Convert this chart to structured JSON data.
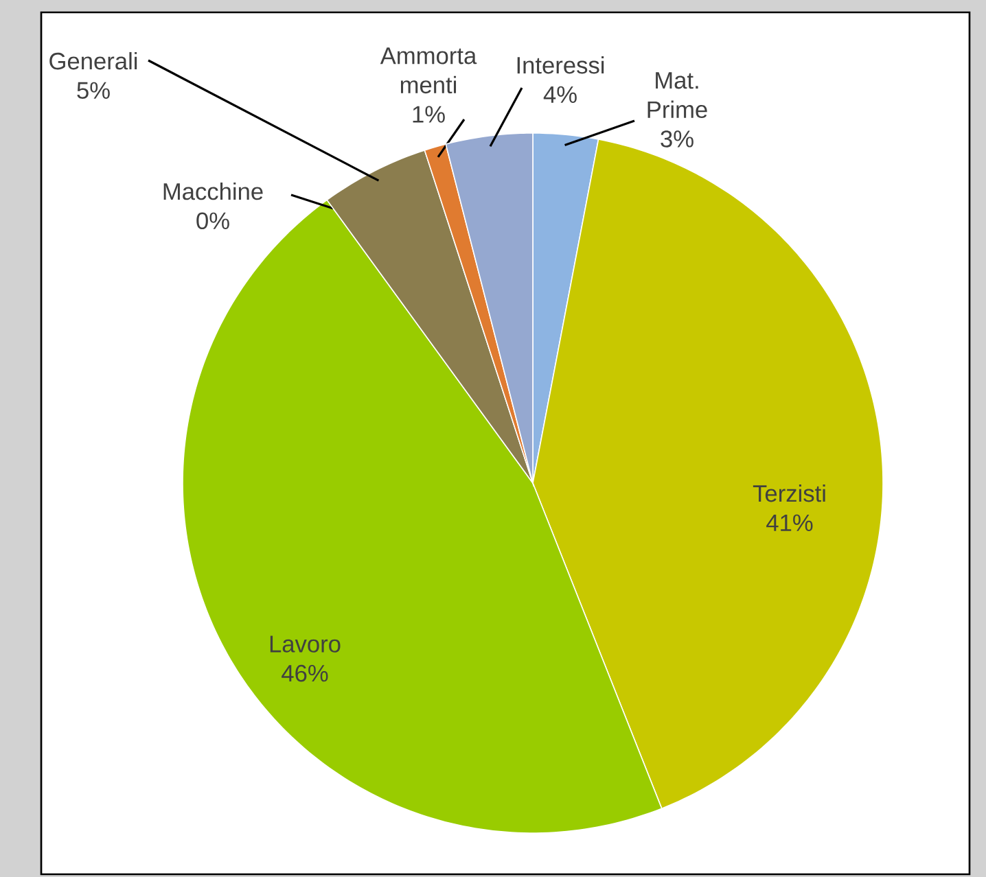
{
  "chart_data": {
    "type": "pie",
    "categories": [
      "Mat. Prime",
      "Terzisti",
      "Lavoro",
      "Macchine",
      "Generali",
      "Ammorta menti",
      "Interessi"
    ],
    "values": [
      3,
      41,
      46,
      0,
      5,
      1,
      4
    ],
    "value_labels": [
      "3%",
      "41%",
      "46%",
      "0%",
      "5%",
      "1%",
      "4%"
    ],
    "colors": [
      "#8db4e2",
      "#c8c800",
      "#99cc00",
      "#a0507a",
      "#8b7d4e",
      "#e07b30",
      "#95a8d0"
    ]
  }
}
